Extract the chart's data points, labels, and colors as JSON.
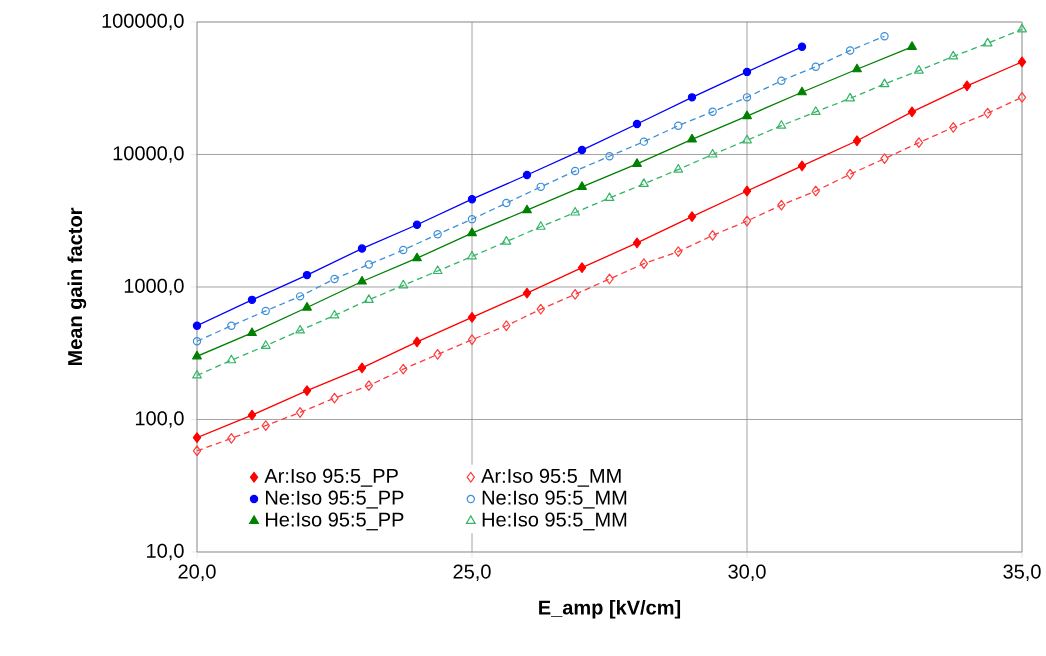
{
  "chart_data": {
    "type": "line",
    "xlabel": "E_amp [kV/cm]",
    "ylabel": "Mean gain factor",
    "log": "y",
    "grid": true,
    "legend": "bottom",
    "xlim": [
      20,
      35
    ],
    "ylim": [
      10,
      100000
    ],
    "xticks": [
      {
        "value": 20,
        "label": "20,0"
      },
      {
        "value": 25,
        "label": "25,0"
      },
      {
        "value": 30,
        "label": "30,0"
      },
      {
        "value": 35,
        "label": "35,0"
      }
    ],
    "yticks": [
      {
        "value": 10,
        "label": "10,0"
      },
      {
        "value": 100,
        "label": "100,0"
      },
      {
        "value": 1000,
        "label": "1000,0"
      },
      {
        "value": 10000,
        "label": "10000,0"
      },
      {
        "value": 100000,
        "label": "100000,0"
      }
    ],
    "series": [
      {
        "name": "Ar:Iso 95:5_PP",
        "color": "#ff0000",
        "marker": "diamond",
        "line_style": "solid",
        "x": [
          20,
          21,
          22,
          23,
          24,
          25,
          26,
          27,
          28,
          29,
          30,
          31,
          32,
          33,
          34,
          35
        ],
        "values": [
          73,
          108,
          165,
          245,
          385,
          590,
          900,
          1400,
          2150,
          3400,
          5300,
          8200,
          12700,
          21000,
          33000,
          50000
        ]
      },
      {
        "name": "Ar:Iso 95:5_MM",
        "color": "#ff3b3b",
        "marker": "diamond",
        "line_style": "dashed",
        "x": [
          20,
          20.625,
          21.25,
          21.875,
          22.5,
          23.125,
          23.75,
          24.375,
          25,
          25.625,
          26.25,
          26.875,
          27.5,
          28.125,
          28.75,
          29.375,
          30,
          30.625,
          31.25,
          31.875,
          32.5,
          33.125,
          33.75,
          34.375,
          35
        ],
        "values": [
          58,
          72,
          90,
          113,
          145,
          180,
          240,
          310,
          400,
          510,
          680,
          880,
          1150,
          1500,
          1850,
          2450,
          3150,
          4150,
          5300,
          7100,
          9300,
          12300,
          16000,
          20500,
          27000
        ]
      },
      {
        "name": "Ne:Iso 95:5_PP",
        "color": "#0000ff",
        "marker": "circle",
        "line_style": "solid",
        "x": [
          20,
          21,
          22,
          23,
          24,
          25,
          26,
          27,
          28,
          29,
          30,
          31
        ],
        "values": [
          510,
          800,
          1230,
          1950,
          2950,
          4600,
          7000,
          10800,
          17000,
          27000,
          42000,
          65000
        ]
      },
      {
        "name": "Ne:Iso 95:5_MM",
        "color": "#3c8fd8",
        "marker": "circle",
        "line_style": "dashed",
        "x": [
          20,
          20.625,
          21.25,
          21.875,
          22.5,
          23.125,
          23.75,
          24.375,
          25,
          25.625,
          26.25,
          26.875,
          27.5,
          28.125,
          28.75,
          29.375,
          30,
          30.625,
          31.25,
          31.875,
          32.5
        ],
        "values": [
          390,
          510,
          660,
          850,
          1150,
          1480,
          1900,
          2500,
          3250,
          4300,
          5700,
          7500,
          9700,
          12500,
          16500,
          21000,
          27000,
          36000,
          46000,
          61000,
          78000
        ]
      },
      {
        "name": "He:Iso 95:5_PP",
        "color": "#008000",
        "marker": "triangle",
        "line_style": "solid",
        "x": [
          20,
          21,
          22,
          23,
          24,
          25,
          26,
          27,
          28,
          29,
          30,
          31,
          32,
          33
        ],
        "values": [
          300,
          450,
          700,
          1100,
          1650,
          2550,
          3800,
          5700,
          8500,
          13000,
          19500,
          29500,
          44000,
          65000
        ]
      },
      {
        "name": "He:Iso 95:5_MM",
        "color": "#33b566",
        "marker": "triangle",
        "line_style": "dashed",
        "x": [
          20,
          20.625,
          21.25,
          21.875,
          22.5,
          23.125,
          23.75,
          24.375,
          25,
          25.625,
          26.25,
          26.875,
          27.5,
          28.125,
          28.75,
          29.375,
          30,
          30.625,
          31.25,
          31.875,
          32.5,
          33.125,
          33.75,
          34.375,
          35
        ],
        "values": [
          215,
          280,
          360,
          470,
          610,
          800,
          1030,
          1320,
          1700,
          2200,
          2850,
          3650,
          4700,
          6000,
          7700,
          10000,
          12800,
          16500,
          21000,
          26500,
          34000,
          43000,
          55000,
          69000,
          88000
        ]
      }
    ]
  }
}
